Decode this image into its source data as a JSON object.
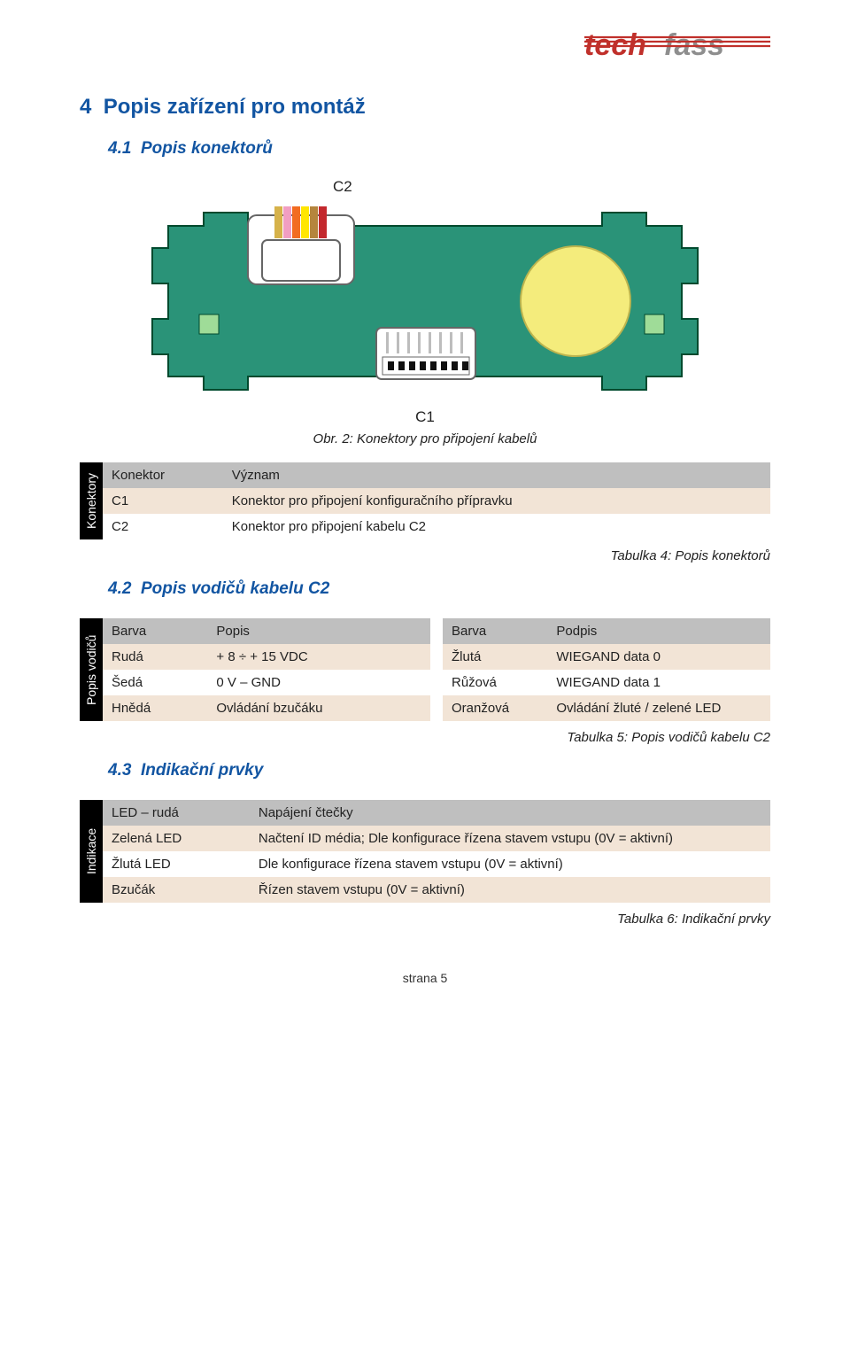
{
  "logo": {
    "text": "techfass",
    "fill1": "#c0302b",
    "fill2": "#8e8e8e"
  },
  "h1": {
    "num": "4",
    "title": "Popis zařízení pro montáž"
  },
  "s41": {
    "num": "4.1",
    "title": "Popis konektorů"
  },
  "fig": {
    "c2_label": "C2",
    "c1_label": "C1",
    "caption": "Obr. 2: Konektory pro připojení kabelů",
    "board_fill": "#2a9378",
    "board_stroke": "#004a2e",
    "cutout_fill": "#ffffff",
    "connector_white": "#ffffff",
    "connector_stroke": "#666666",
    "wire_colors": [
      "#d6b24a",
      "#f19ec2",
      "#f26c21",
      "#ffe600",
      "#b5853d",
      "#c3282d"
    ],
    "led_pad": "#9fdc98",
    "circle_fill": "#f4ec7c",
    "circle_stroke": "#bcb44e"
  },
  "t4": {
    "sidebar": "Konektory",
    "head": [
      "Konektor",
      "Význam"
    ],
    "rows": [
      [
        "C1",
        "Konektor pro připojení konfiguračního přípravku"
      ],
      [
        "C2",
        "Konektor pro připojení kabelu C2"
      ]
    ],
    "caption": "Tabulka 4: Popis konektorů"
  },
  "s42": {
    "num": "4.2",
    "title": "Popis vodičů kabelu C2"
  },
  "t5": {
    "sidebar": "Popis vodičů",
    "headL": [
      "Barva",
      "Popis"
    ],
    "headR": [
      "Barva",
      "Podpis"
    ],
    "rowsL": [
      [
        "Rudá",
        "+ 8 ÷ + 15 VDC"
      ],
      [
        "Šedá",
        "0 V – GND"
      ],
      [
        "Hnědá",
        "Ovládání bzučáku"
      ]
    ],
    "rowsR": [
      [
        "Žlutá",
        "WIEGAND data 0"
      ],
      [
        "Růžová",
        "WIEGAND data 1"
      ],
      [
        "Oranžová",
        "Ovládání žluté / zelené LED"
      ]
    ],
    "caption": "Tabulka 5: Popis vodičů kabelu C2"
  },
  "s43": {
    "num": "4.3",
    "title": "Indikační prvky"
  },
  "t6": {
    "sidebar": "Indikace",
    "rows": [
      [
        "LED – rudá",
        "Napájení čtečky"
      ],
      [
        "Zelená LED",
        "Načtení ID média; Dle konfigurace řízena stavem vstupu (0V = aktivní)"
      ],
      [
        "Žlutá LED",
        "Dle konfigurace řízena stavem vstupu (0V = aktivní)"
      ],
      [
        "Bzučák",
        "Řízen stavem vstupu (0V = aktivní)"
      ]
    ],
    "caption": "Tabulka 6: Indikační prvky"
  },
  "footer": "strana 5",
  "col_widths": {
    "t4c0": "18%",
    "t5c0": "32%",
    "t6c0": "22%"
  },
  "alt_row_bg": "#f2e4d6"
}
